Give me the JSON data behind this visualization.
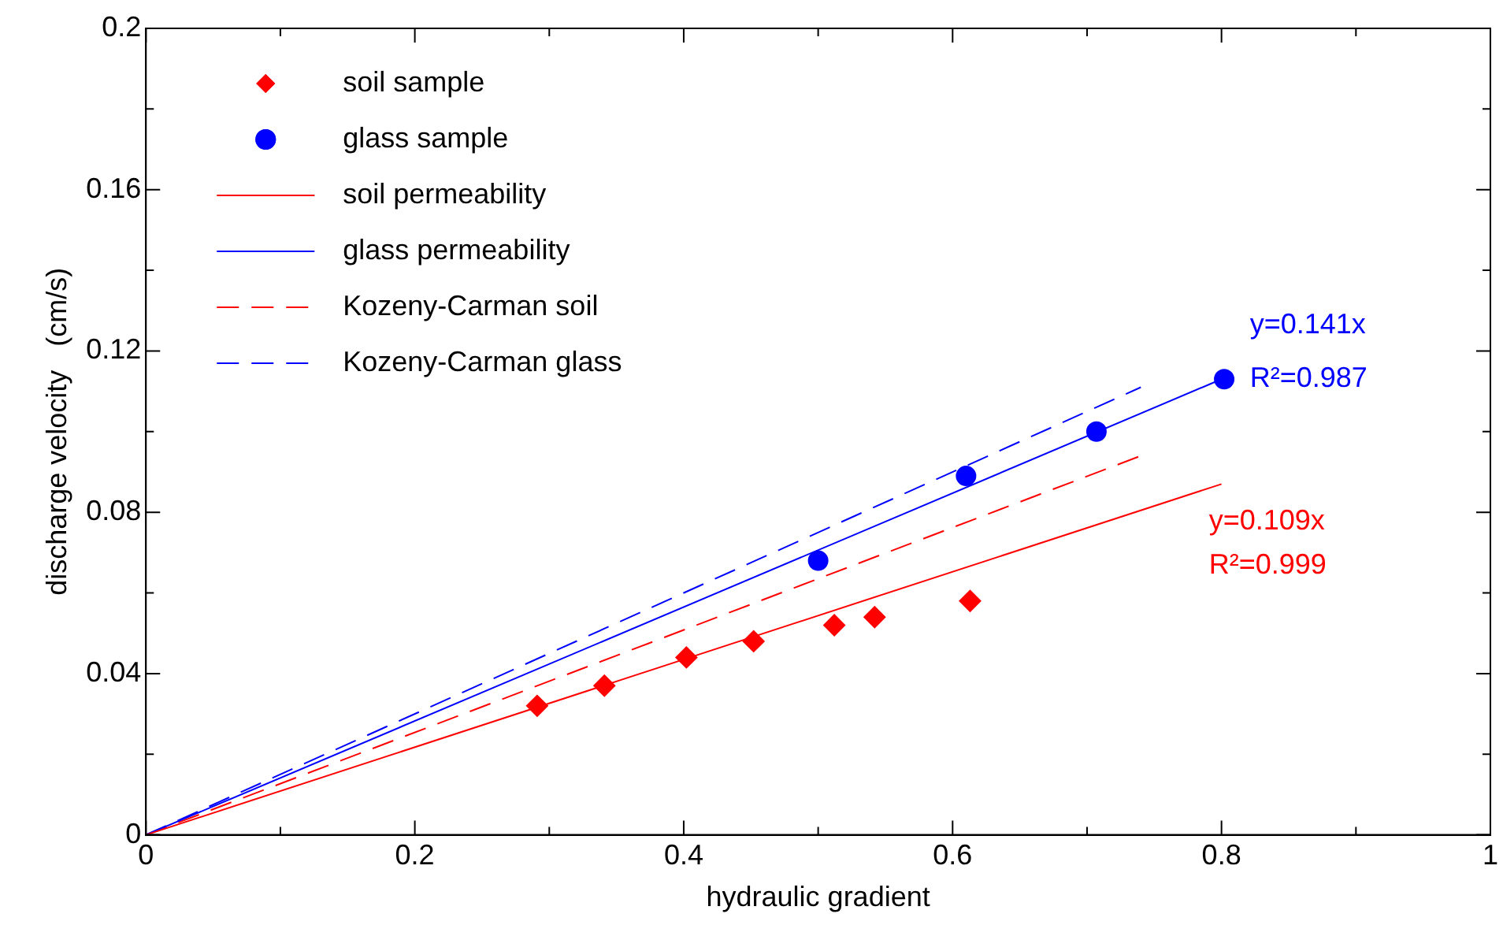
{
  "chart_data": {
    "type": "scatter",
    "xlabel": "hydraulic gradient",
    "ylabel": "discharge velocity   (cm/s)",
    "xlim": [
      0,
      1
    ],
    "ylim": [
      0,
      0.2
    ],
    "xticks": [
      0,
      {
        "value": 0.1,
        "label": null
      },
      0.2,
      {
        "value": 0.3,
        "label": null
      },
      0.4,
      {
        "value": 0.5,
        "label": null
      },
      0.6,
      {
        "value": 0.7,
        "label": null
      },
      0.8,
      {
        "value": 0.9,
        "label": null
      },
      1
    ],
    "yticks": [
      0,
      {
        "value": 0.02,
        "label": null
      },
      0.04,
      {
        "value": 0.06,
        "label": null
      },
      0.08,
      {
        "value": 0.1,
        "label": null
      },
      0.12,
      {
        "value": 0.14,
        "label": null
      },
      0.16,
      {
        "value": 0.18,
        "label": null
      },
      0.2
    ],
    "grid": false,
    "legend": "top left",
    "series": [
      {
        "name": "soil sample",
        "type": "scatter",
        "marker": "diamond",
        "color": "#ff0000",
        "x": [
          0.291,
          0.341,
          0.402,
          0.452,
          0.512,
          0.542,
          0.613
        ],
        "values": [
          0.032,
          0.037,
          0.044,
          0.048,
          0.052,
          0.054,
          0.058
        ]
      },
      {
        "name": "glass sample",
        "type": "scatter",
        "marker": "circle",
        "color": "#0000ff",
        "x": [
          0.5,
          0.61,
          0.707,
          0.802
        ],
        "values": [
          0.068,
          0.089,
          0.1,
          0.113
        ]
      },
      {
        "name": "soil permeability",
        "type": "line",
        "marker": "none",
        "line_style": "solid",
        "color": "#ff0000",
        "x": [
          0,
          0.8
        ],
        "values": [
          0,
          0.087
        ]
      },
      {
        "name": "glass permeability",
        "type": "line",
        "marker": "none",
        "line_style": "solid",
        "color": "#0000ff",
        "x": [
          0,
          0.8
        ],
        "values": [
          0,
          0.113
        ]
      },
      {
        "name": "Kozeny-Carman soil",
        "type": "line",
        "marker": "none",
        "line_style": "dashed",
        "color": "#ff0000",
        "x": [
          0,
          0.74
        ],
        "values": [
          0,
          0.094
        ]
      },
      {
        "name": "Kozeny-Carman glass",
        "type": "line",
        "marker": "none",
        "line_style": "dashed",
        "color": "#0000ff",
        "x": [
          0,
          0.74
        ],
        "values": [
          0,
          0.111
        ]
      }
    ],
    "annotations": [
      "y=0.141x",
      "R²=0.987",
      "y=0.109x",
      "R²=0.999"
    ]
  }
}
